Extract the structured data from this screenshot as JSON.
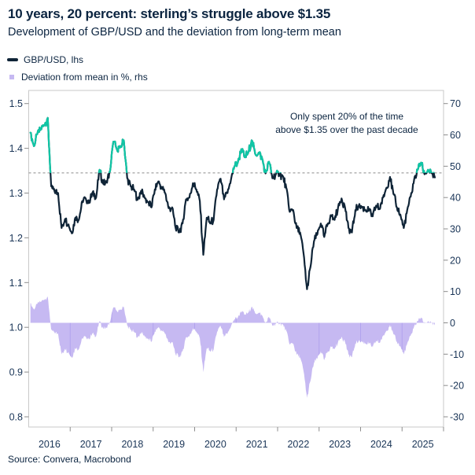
{
  "header": {
    "title": "10 years, 20 percent: sterling’s struggle above $1.35",
    "subtitle": "Development of GBP/USD and the deviation from long-term mean"
  },
  "legend": {
    "items": [
      {
        "label": "GBP/USD, lhs",
        "marker": "line"
      },
      {
        "label": "Deviation from mean in %, rhs",
        "marker": "square"
      }
    ]
  },
  "annotation": {
    "line1": "Only spent 20% of the time",
    "line2": "above $1.35 over the past decade"
  },
  "source": "Source: Convera, Macrobond",
  "colors": {
    "text_navy": "#0b2440",
    "axis_text": "#1a3557",
    "line_navy": "#0f2437",
    "line_teal": "#0fc7a6",
    "bar_purple": "#c6b9f2",
    "bar_separator": "#b2a3ee",
    "mean_dash": "#8a8a8a",
    "frame": "#c9c9c9",
    "tick": "#8c8c8c"
  },
  "chart_data": {
    "type": "line",
    "title": "GBP/USD and deviation from long-term mean",
    "x_axis": {
      "labels": [
        "2016",
        "2017",
        "2018",
        "2019",
        "2020",
        "2021",
        "2022",
        "2023",
        "2024",
        "2025"
      ],
      "range_start": 2016.0,
      "range_end": 2026.0
    },
    "left_axis": {
      "label": "GBP/USD, lhs",
      "ticks": [
        "1.5",
        "1.4",
        "1.3",
        "1.2",
        "1.1",
        "1.0",
        "0.9",
        "0.8"
      ],
      "min": 0.8,
      "max": 1.5
    },
    "right_axis": {
      "label": "Deviation from mean in %, rhs",
      "ticks": [
        "70",
        "60",
        "50",
        "40",
        "30",
        "20",
        "10",
        "0",
        "-10",
        "-20",
        "-30"
      ],
      "min": -30,
      "max": 70
    },
    "mean_line_value": 1.345,
    "deviation_formula": "(value - mean) / value * 100",
    "color_rule": "line is teal above mean_line_value, navy below; deviation bars on right axis",
    "series": [
      {
        "name": "GBP/USD, lhs",
        "type": "line",
        "axis": "left",
        "frequency": "monthly",
        "start": "2016-01",
        "end": "2025-10",
        "values": [
          1.435,
          1.405,
          1.432,
          1.443,
          1.452,
          1.468,
          1.315,
          1.303,
          1.3,
          1.222,
          1.242,
          1.23,
          1.21,
          1.245,
          1.24,
          1.282,
          1.288,
          1.278,
          1.302,
          1.29,
          1.352,
          1.322,
          1.324,
          1.348,
          1.415,
          1.398,
          1.402,
          1.418,
          1.333,
          1.315,
          1.308,
          1.285,
          1.305,
          1.29,
          1.28,
          1.268,
          1.308,
          1.326,
          1.312,
          1.3,
          1.266,
          1.268,
          1.222,
          1.212,
          1.232,
          1.286,
          1.29,
          1.322,
          1.308,
          1.282,
          1.162,
          1.245,
          1.232,
          1.24,
          1.308,
          1.332,
          1.286,
          1.3,
          1.33,
          1.36,
          1.368,
          1.398,
          1.38,
          1.39,
          1.418,
          1.388,
          1.39,
          1.378,
          1.344,
          1.37,
          1.333,
          1.342,
          1.342,
          1.338,
          1.312,
          1.258,
          1.262,
          1.222,
          1.212,
          1.165,
          1.085,
          1.135,
          1.192,
          1.208,
          1.232,
          1.202,
          1.232,
          1.25,
          1.24,
          1.268,
          1.288,
          1.268,
          1.222,
          1.212,
          1.262,
          1.272,
          1.268,
          1.262,
          1.262,
          1.248,
          1.272,
          1.264,
          1.29,
          1.312,
          1.336,
          1.298,
          1.268,
          1.252,
          1.222,
          1.262,
          1.292,
          1.33,
          1.352,
          1.368,
          1.342,
          1.352,
          1.345,
          1.335
        ]
      },
      {
        "name": "Deviation from mean in %, rhs",
        "type": "bar",
        "axis": "right",
        "derived_from": "GBP/USD, lhs",
        "formula": "(value - 1.345) / value * 100"
      }
    ],
    "noise_amplitude": 0.01
  }
}
